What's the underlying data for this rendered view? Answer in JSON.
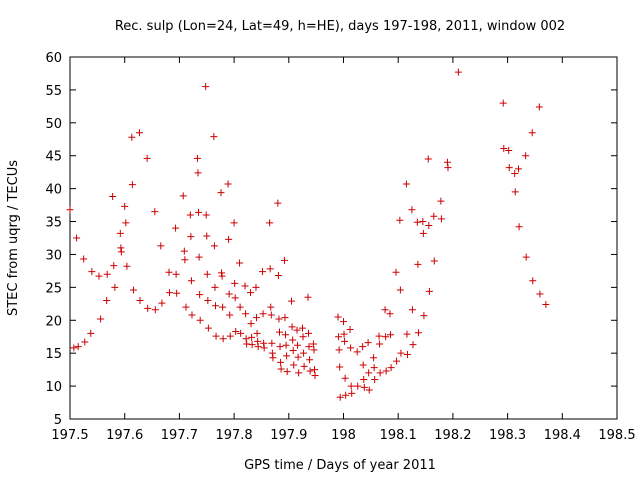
{
  "chart_data": {
    "type": "scatter",
    "title": "Rec. sulp (Lon=24, Lat=49, h=HE), days 197-198, 2011, window 002",
    "xlabel": "GPS time / Days of year 2011",
    "ylabel": "STEC from uqrg / TECUs",
    "xlim": [
      197.5,
      198.5
    ],
    "ylim": [
      5,
      60
    ],
    "xticks": [
      197.5,
      197.6,
      197.7,
      197.8,
      197.9,
      198.0,
      198.1,
      198.2,
      198.3,
      198.4,
      198.5
    ],
    "xtick_labels": [
      "197.5",
      "197.6",
      "197.7",
      "197.8",
      "197.9",
      "198",
      "198.1",
      "198.2",
      "198.3",
      "198.4",
      "198.5"
    ],
    "yticks": [
      5,
      10,
      15,
      20,
      25,
      30,
      35,
      40,
      45,
      50,
      55,
      60
    ],
    "ytick_labels": [
      "5",
      "10",
      "15",
      "20",
      "25",
      "30",
      "35",
      "40",
      "45",
      "50",
      "55",
      "60"
    ],
    "grid": false,
    "marker": "plus",
    "colors": {
      "points": "#cc0000",
      "axes": "#000000"
    },
    "points": [
      [
        197.5,
        36.8
      ],
      [
        197.507,
        15.8
      ],
      [
        197.512,
        32.5
      ],
      [
        197.515,
        16.0
      ],
      [
        197.525,
        29.3
      ],
      [
        197.527,
        16.7
      ],
      [
        197.538,
        18.0
      ],
      [
        197.54,
        27.4
      ],
      [
        197.553,
        26.7
      ],
      [
        197.556,
        20.2
      ],
      [
        197.567,
        23.0
      ],
      [
        197.568,
        27.0
      ],
      [
        197.578,
        38.8
      ],
      [
        197.58,
        28.3
      ],
      [
        197.582,
        25.0
      ],
      [
        197.592,
        33.2
      ],
      [
        197.593,
        31.0
      ],
      [
        197.594,
        30.4
      ],
      [
        197.6,
        37.3
      ],
      [
        197.602,
        34.8
      ],
      [
        197.604,
        28.2
      ],
      [
        197.613,
        47.8
      ],
      [
        197.614,
        40.6
      ],
      [
        197.616,
        24.6
      ],
      [
        197.627,
        48.5
      ],
      [
        197.628,
        23.0
      ],
      [
        197.641,
        44.6
      ],
      [
        197.642,
        21.8
      ],
      [
        197.655,
        36.5
      ],
      [
        197.656,
        21.6
      ],
      [
        197.666,
        31.3
      ],
      [
        197.668,
        22.6
      ],
      [
        197.681,
        27.3
      ],
      [
        197.682,
        24.2
      ],
      [
        197.693,
        34.0
      ],
      [
        197.694,
        27.0
      ],
      [
        197.695,
        24.1
      ],
      [
        197.707,
        38.9
      ],
      [
        197.709,
        30.5
      ],
      [
        197.71,
        29.2
      ],
      [
        197.712,
        22.0
      ],
      [
        197.72,
        36.0
      ],
      [
        197.721,
        32.7
      ],
      [
        197.722,
        26.0
      ],
      [
        197.723,
        20.8
      ],
      [
        197.733,
        44.6
      ],
      [
        197.734,
        42.4
      ],
      [
        197.735,
        36.4
      ],
      [
        197.736,
        29.6
      ],
      [
        197.737,
        23.9
      ],
      [
        197.738,
        20.0
      ],
      [
        197.748,
        55.5
      ],
      [
        197.749,
        36.0
      ],
      [
        197.75,
        32.8
      ],
      [
        197.751,
        27.0
      ],
      [
        197.752,
        23.0
      ],
      [
        197.753,
        18.8
      ],
      [
        197.763,
        47.9
      ],
      [
        197.764,
        31.3
      ],
      [
        197.765,
        25.0
      ],
      [
        197.766,
        22.2
      ],
      [
        197.767,
        17.6
      ],
      [
        197.776,
        39.4
      ],
      [
        197.777,
        27.2
      ],
      [
        197.778,
        26.7
      ],
      [
        197.779,
        22.0
      ],
      [
        197.78,
        17.2
      ],
      [
        197.789,
        40.7
      ],
      [
        197.79,
        32.3
      ],
      [
        197.791,
        24.0
      ],
      [
        197.792,
        20.8
      ],
      [
        197.793,
        17.6
      ],
      [
        197.8,
        34.8
      ],
      [
        197.801,
        25.6
      ],
      [
        197.802,
        23.4
      ],
      [
        197.803,
        18.3
      ],
      [
        197.81,
        28.7
      ],
      [
        197.811,
        22.0
      ],
      [
        197.812,
        18.0
      ],
      [
        197.82,
        25.2
      ],
      [
        197.821,
        21.0
      ],
      [
        197.822,
        17.2
      ],
      [
        197.823,
        16.4
      ],
      [
        197.83,
        24.2
      ],
      [
        197.831,
        19.5
      ],
      [
        197.832,
        17.4
      ],
      [
        197.833,
        16.3
      ],
      [
        197.84,
        25.0
      ],
      [
        197.841,
        20.4
      ],
      [
        197.842,
        18.0
      ],
      [
        197.843,
        16.8
      ],
      [
        197.844,
        16.0
      ],
      [
        197.852,
        27.4
      ],
      [
        197.853,
        21.0
      ],
      [
        197.854,
        16.5
      ],
      [
        197.855,
        15.8
      ],
      [
        197.865,
        34.8
      ],
      [
        197.866,
        27.8
      ],
      [
        197.867,
        22.0
      ],
      [
        197.868,
        20.8
      ],
      [
        197.869,
        16.5
      ],
      [
        197.87,
        15.0
      ],
      [
        197.871,
        14.3
      ],
      [
        197.88,
        37.8
      ],
      [
        197.881,
        26.8
      ],
      [
        197.882,
        20.2
      ],
      [
        197.883,
        18.2
      ],
      [
        197.884,
        16.0
      ],
      [
        197.885,
        13.6
      ],
      [
        197.886,
        12.6
      ],
      [
        197.892,
        29.1
      ],
      [
        197.893,
        20.4
      ],
      [
        197.894,
        17.8
      ],
      [
        197.895,
        16.2
      ],
      [
        197.896,
        14.6
      ],
      [
        197.897,
        12.2
      ],
      [
        197.905,
        22.9
      ],
      [
        197.906,
        19.0
      ],
      [
        197.907,
        17.0
      ],
      [
        197.908,
        15.4
      ],
      [
        197.909,
        13.2
      ],
      [
        197.915,
        18.5
      ],
      [
        197.916,
        16.2
      ],
      [
        197.917,
        14.4
      ],
      [
        197.918,
        12.0
      ],
      [
        197.925,
        18.8
      ],
      [
        197.926,
        17.5
      ],
      [
        197.927,
        15.0
      ],
      [
        197.928,
        13.0
      ],
      [
        197.935,
        23.5
      ],
      [
        197.936,
        18.0
      ],
      [
        197.937,
        16.0
      ],
      [
        197.938,
        14.0
      ],
      [
        197.939,
        12.3
      ],
      [
        197.945,
        16.4
      ],
      [
        197.946,
        15.5
      ],
      [
        197.947,
        12.5
      ],
      [
        197.948,
        11.6
      ],
      [
        197.99,
        20.5
      ],
      [
        197.991,
        17.5
      ],
      [
        197.992,
        15.5
      ],
      [
        197.993,
        12.9
      ],
      [
        197.994,
        8.3
      ],
      [
        198.0,
        19.8
      ],
      [
        198.001,
        17.9
      ],
      [
        198.002,
        16.8
      ],
      [
        198.003,
        11.2
      ],
      [
        198.004,
        8.6
      ],
      [
        198.012,
        18.6
      ],
      [
        198.013,
        15.8
      ],
      [
        198.014,
        10.0
      ],
      [
        198.015,
        8.9
      ],
      [
        198.025,
        15.2
      ],
      [
        198.026,
        10.0
      ],
      [
        198.035,
        16.0
      ],
      [
        198.036,
        13.2
      ],
      [
        198.037,
        11.0
      ],
      [
        198.038,
        9.8
      ],
      [
        198.045,
        16.6
      ],
      [
        198.046,
        12.0
      ],
      [
        198.047,
        9.4
      ],
      [
        198.055,
        14.3
      ],
      [
        198.056,
        12.8
      ],
      [
        198.057,
        11.0
      ],
      [
        198.065,
        17.6
      ],
      [
        198.066,
        16.4
      ],
      [
        198.067,
        12.0
      ],
      [
        198.076,
        21.6
      ],
      [
        198.077,
        17.5
      ],
      [
        198.078,
        12.3
      ],
      [
        198.085,
        21.0
      ],
      [
        198.086,
        17.8
      ],
      [
        198.087,
        12.8
      ],
      [
        198.096,
        27.3
      ],
      [
        198.097,
        13.8
      ],
      [
        198.103,
        35.2
      ],
      [
        198.104,
        24.6
      ],
      [
        198.105,
        15.0
      ],
      [
        198.115,
        40.7
      ],
      [
        198.116,
        17.9
      ],
      [
        198.117,
        14.8
      ],
      [
        198.125,
        36.8
      ],
      [
        198.126,
        21.6
      ],
      [
        198.127,
        16.3
      ],
      [
        198.135,
        34.9
      ],
      [
        198.136,
        28.5
      ],
      [
        198.137,
        18.1
      ],
      [
        198.145,
        35.0
      ],
      [
        198.146,
        33.2
      ],
      [
        198.147,
        20.7
      ],
      [
        198.155,
        44.5
      ],
      [
        198.156,
        34.4
      ],
      [
        198.157,
        24.4
      ],
      [
        198.165,
        35.8
      ],
      [
        198.166,
        29.0
      ],
      [
        198.178,
        38.1
      ],
      [
        198.179,
        35.4
      ],
      [
        198.19,
        44.0
      ],
      [
        198.191,
        43.2
      ],
      [
        198.21,
        57.7
      ],
      [
        198.292,
        53.0
      ],
      [
        198.293,
        46.1
      ],
      [
        198.302,
        45.8
      ],
      [
        198.303,
        43.2
      ],
      [
        198.313,
        42.3
      ],
      [
        198.314,
        39.5
      ],
      [
        198.32,
        43.0
      ],
      [
        198.321,
        34.2
      ],
      [
        198.333,
        45.0
      ],
      [
        198.334,
        29.6
      ],
      [
        198.345,
        48.5
      ],
      [
        198.346,
        26.0
      ],
      [
        198.358,
        52.4
      ],
      [
        198.359,
        24.0
      ],
      [
        198.37,
        22.4
      ]
    ]
  }
}
